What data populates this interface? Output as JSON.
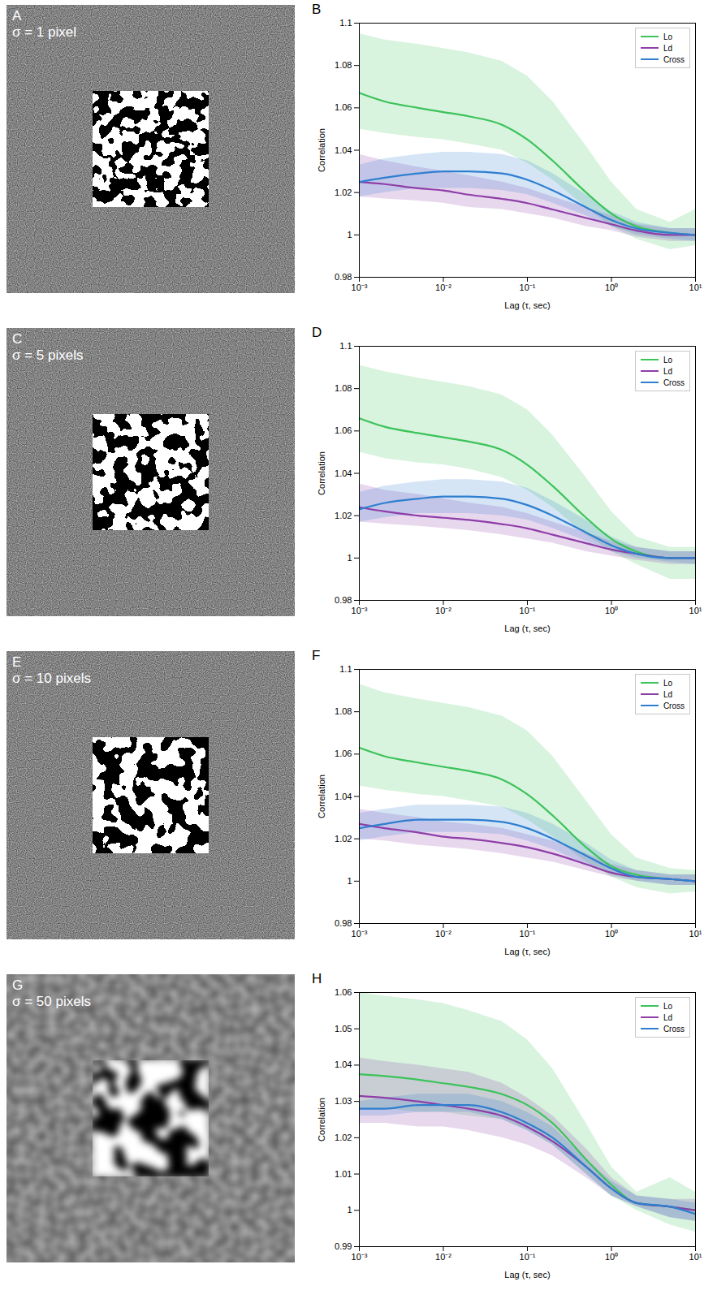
{
  "images": [
    {
      "panel": "A",
      "text": "σ = 1 pixel"
    },
    {
      "panel": "C",
      "text": "σ = 5 pixels"
    },
    {
      "panel": "E",
      "text": "σ = 10 pixels"
    },
    {
      "panel": "G",
      "text": "σ = 50 pixels"
    }
  ],
  "chart_data": [
    {
      "type": "line",
      "panel": "B",
      "x_label": "Lag (τ, sec)",
      "y_label": "Correlation",
      "log": "x",
      "legend": "northeast",
      "xlim": [
        0.001,
        10
      ],
      "xticks": [
        {
          "value": 0.001,
          "label": "10⁻³"
        },
        {
          "value": 0.01,
          "label": "10⁻²"
        },
        {
          "value": 0.1,
          "label": "10⁻¹"
        },
        {
          "value": 1,
          "label": "10⁰"
        },
        {
          "value": 10,
          "label": "10¹"
        }
      ],
      "ylim": [
        0.98,
        1.1
      ],
      "yticks": [
        0.98,
        1,
        1.02,
        1.04,
        1.06,
        1.08,
        1.1
      ],
      "x": [
        0.001,
        0.002,
        0.005,
        0.01,
        0.02,
        0.05,
        0.1,
        0.2,
        0.5,
        1,
        2,
        5,
        10
      ],
      "series": [
        {
          "name": "Lo",
          "color": "#3cc35a",
          "values": [
            1.067,
            1.063,
            1.06,
            1.058,
            1.056,
            1.052,
            1.045,
            1.035,
            1.02,
            1.01,
            1.004,
            1.001,
            1.0
          ],
          "lower": [
            1.05,
            1.048,
            1.046,
            1.045,
            1.043,
            1.04,
            1.034,
            1.026,
            1.013,
            1.004,
            0.998,
            0.993,
            0.995
          ],
          "upper": [
            1.095,
            1.092,
            1.09,
            1.088,
            1.086,
            1.082,
            1.075,
            1.063,
            1.042,
            1.025,
            1.012,
            1.006,
            1.012
          ]
        },
        {
          "name": "Ld",
          "color": "#8e3ea8",
          "values": [
            1.025,
            1.024,
            1.022,
            1.021,
            1.019,
            1.017,
            1.015,
            1.012,
            1.008,
            1.005,
            1.002,
            1.0,
            1.0
          ],
          "lower": [
            1.018,
            1.017,
            1.016,
            1.015,
            1.013,
            1.012,
            1.01,
            1.008,
            1.004,
            1.002,
            0.999,
            0.997,
            0.997
          ],
          "upper": [
            1.038,
            1.035,
            1.032,
            1.03,
            1.028,
            1.025,
            1.022,
            1.018,
            1.013,
            1.009,
            1.005,
            1.003,
            1.003
          ]
        },
        {
          "name": "Cross",
          "color": "#2f7fd0",
          "values": [
            1.025,
            1.027,
            1.029,
            1.03,
            1.03,
            1.029,
            1.026,
            1.021,
            1.013,
            1.007,
            1.003,
            1.001,
            1.0
          ],
          "lower": [
            1.018,
            1.02,
            1.022,
            1.022,
            1.022,
            1.021,
            1.019,
            1.015,
            1.009,
            1.004,
            1.0,
            0.998,
            0.997
          ],
          "upper": [
            1.033,
            1.036,
            1.038,
            1.039,
            1.039,
            1.038,
            1.035,
            1.029,
            1.019,
            1.011,
            1.006,
            1.003,
            1.003
          ]
        }
      ]
    },
    {
      "type": "line",
      "panel": "D",
      "x_label": "Lag (τ, sec)",
      "y_label": "Correlation",
      "log": "x",
      "legend": "northeast",
      "xlim": [
        0.001,
        10
      ],
      "xticks": [
        {
          "value": 0.001,
          "label": "10⁻³"
        },
        {
          "value": 0.01,
          "label": "10⁻²"
        },
        {
          "value": 0.1,
          "label": "10⁻¹"
        },
        {
          "value": 1,
          "label": "10⁰"
        },
        {
          "value": 10,
          "label": "10¹"
        }
      ],
      "ylim": [
        0.98,
        1.1
      ],
      "yticks": [
        0.98,
        1,
        1.02,
        1.04,
        1.06,
        1.08,
        1.1
      ],
      "x": [
        0.001,
        0.002,
        0.005,
        0.01,
        0.02,
        0.05,
        0.1,
        0.2,
        0.5,
        1,
        2,
        5,
        10
      ],
      "series": [
        {
          "name": "Lo",
          "color": "#3cc35a",
          "values": [
            1.066,
            1.062,
            1.059,
            1.057,
            1.055,
            1.051,
            1.044,
            1.034,
            1.019,
            1.009,
            1.003,
            1.0,
            1.0
          ],
          "lower": [
            1.05,
            1.047,
            1.045,
            1.044,
            1.042,
            1.038,
            1.032,
            1.024,
            1.011,
            1.003,
            0.997,
            0.99,
            0.99
          ],
          "upper": [
            1.091,
            1.088,
            1.085,
            1.083,
            1.081,
            1.077,
            1.07,
            1.058,
            1.038,
            1.022,
            1.01,
            1.005,
            1.005
          ]
        },
        {
          "name": "Ld",
          "color": "#8e3ea8",
          "values": [
            1.024,
            1.022,
            1.02,
            1.019,
            1.018,
            1.016,
            1.014,
            1.011,
            1.007,
            1.004,
            1.002,
            1.0,
            1.0
          ],
          "lower": [
            1.017,
            1.016,
            1.015,
            1.014,
            1.013,
            1.011,
            1.009,
            1.007,
            1.003,
            1.001,
            0.999,
            0.997,
            0.997
          ],
          "upper": [
            1.035,
            1.032,
            1.03,
            1.028,
            1.026,
            1.024,
            1.021,
            1.017,
            1.012,
            1.008,
            1.005,
            1.003,
            1.003
          ]
        },
        {
          "name": "Cross",
          "color": "#2f7fd0",
          "values": [
            1.023,
            1.026,
            1.028,
            1.029,
            1.029,
            1.028,
            1.025,
            1.02,
            1.012,
            1.006,
            1.002,
            1.0,
            1.0
          ],
          "lower": [
            1.017,
            1.019,
            1.021,
            1.021,
            1.021,
            1.02,
            1.018,
            1.014,
            1.008,
            1.003,
            1.0,
            0.998,
            0.997
          ],
          "upper": [
            1.031,
            1.034,
            1.036,
            1.037,
            1.037,
            1.036,
            1.033,
            1.027,
            1.018,
            1.01,
            1.005,
            1.003,
            1.003
          ]
        }
      ]
    },
    {
      "type": "line",
      "panel": "F",
      "x_label": "Lag (τ, sec)",
      "y_label": "Correlation",
      "log": "x",
      "legend": "northeast",
      "xlim": [
        0.001,
        10
      ],
      "xticks": [
        {
          "value": 0.001,
          "label": "10⁻³"
        },
        {
          "value": 0.01,
          "label": "10⁻²"
        },
        {
          "value": 0.1,
          "label": "10⁻¹"
        },
        {
          "value": 1,
          "label": "10⁰"
        },
        {
          "value": 10,
          "label": "10¹"
        }
      ],
      "ylim": [
        0.98,
        1.1
      ],
      "yticks": [
        0.98,
        1,
        1.02,
        1.04,
        1.06,
        1.08,
        1.1
      ],
      "x": [
        0.001,
        0.002,
        0.005,
        0.01,
        0.02,
        0.05,
        0.1,
        0.2,
        0.5,
        1,
        2,
        5,
        10
      ],
      "series": [
        {
          "name": "Lo",
          "color": "#3cc35a",
          "values": [
            1.063,
            1.059,
            1.056,
            1.054,
            1.052,
            1.048,
            1.041,
            1.031,
            1.016,
            1.007,
            1.003,
            1.001,
            1.0
          ],
          "lower": [
            1.045,
            1.043,
            1.041,
            1.04,
            1.038,
            1.035,
            1.029,
            1.021,
            1.009,
            1.002,
            0.997,
            0.994,
            0.995
          ],
          "upper": [
            1.093,
            1.089,
            1.086,
            1.084,
            1.082,
            1.078,
            1.071,
            1.059,
            1.038,
            1.022,
            1.011,
            1.006,
            1.005
          ]
        },
        {
          "name": "Ld",
          "color": "#8e3ea8",
          "values": [
            1.027,
            1.025,
            1.023,
            1.021,
            1.02,
            1.018,
            1.016,
            1.013,
            1.008,
            1.004,
            1.002,
            1.001,
            1.0
          ],
          "lower": [
            1.02,
            1.019,
            1.017,
            1.016,
            1.015,
            1.013,
            1.011,
            1.009,
            1.005,
            1.002,
            1.0,
            0.998,
            0.998
          ],
          "upper": [
            1.034,
            1.032,
            1.03,
            1.028,
            1.027,
            1.025,
            1.022,
            1.019,
            1.013,
            1.008,
            1.005,
            1.003,
            1.003
          ]
        },
        {
          "name": "Cross",
          "color": "#2f7fd0",
          "values": [
            1.025,
            1.027,
            1.029,
            1.029,
            1.029,
            1.028,
            1.025,
            1.02,
            1.012,
            1.006,
            1.002,
            1.001,
            1.0
          ],
          "lower": [
            1.019,
            1.021,
            1.023,
            1.023,
            1.023,
            1.022,
            1.019,
            1.015,
            1.008,
            1.003,
            1.0,
            0.998,
            0.998
          ],
          "upper": [
            1.032,
            1.034,
            1.036,
            1.036,
            1.036,
            1.035,
            1.032,
            1.027,
            1.018,
            1.01,
            1.005,
            1.003,
            1.003
          ]
        }
      ]
    },
    {
      "type": "line",
      "panel": "H",
      "x_label": "Lag (τ, sec)",
      "y_label": "Correlation",
      "log": "x",
      "legend": "northeast",
      "xlim": [
        0.001,
        10
      ],
      "xticks": [
        {
          "value": 0.001,
          "label": "10⁻³"
        },
        {
          "value": 0.01,
          "label": "10⁻²"
        },
        {
          "value": 0.1,
          "label": "10⁻¹"
        },
        {
          "value": 1,
          "label": "10⁰"
        },
        {
          "value": 10,
          "label": "10¹"
        }
      ],
      "ylim": [
        0.99,
        1.06
      ],
      "yticks": [
        0.99,
        1,
        1.01,
        1.02,
        1.03,
        1.04,
        1.05,
        1.06
      ],
      "x": [
        0.001,
        0.002,
        0.005,
        0.01,
        0.02,
        0.05,
        0.1,
        0.2,
        0.5,
        1,
        2,
        5,
        10
      ],
      "series": [
        {
          "name": "Lo",
          "color": "#3cc35a",
          "values": [
            1.0375,
            1.037,
            1.036,
            1.035,
            1.034,
            1.032,
            1.029,
            1.024,
            1.014,
            1.007,
            1.002,
            1.001,
            1.0
          ],
          "lower": [
            1.028,
            1.028,
            1.027,
            1.027,
            1.026,
            1.025,
            1.022,
            1.018,
            1.01,
            1.004,
            1.0,
            0.996,
            0.994
          ],
          "upper": [
            1.06,
            1.059,
            1.058,
            1.057,
            1.055,
            1.052,
            1.047,
            1.039,
            1.024,
            1.012,
            1.005,
            1.009,
            1.005
          ]
        },
        {
          "name": "Ld",
          "color": "#8e3ea8",
          "values": [
            1.0315,
            1.031,
            1.03,
            1.029,
            1.028,
            1.026,
            1.023,
            1.019,
            1.012,
            1.006,
            1.002,
            1.001,
            1.0
          ],
          "lower": [
            1.024,
            1.024,
            1.023,
            1.023,
            1.022,
            1.02,
            1.018,
            1.015,
            1.009,
            1.004,
            1.001,
            0.998,
            0.997
          ],
          "upper": [
            1.042,
            1.041,
            1.04,
            1.039,
            1.038,
            1.035,
            1.031,
            1.026,
            1.017,
            1.009,
            1.004,
            1.003,
            1.003
          ]
        },
        {
          "name": "Cross",
          "color": "#2f7fd0",
          "values": [
            1.028,
            1.028,
            1.029,
            1.029,
            1.029,
            1.027,
            1.024,
            1.02,
            1.012,
            1.006,
            1.002,
            1.001,
            0.999
          ],
          "lower": [
            1.026,
            1.026,
            1.027,
            1.027,
            1.027,
            1.025,
            1.022,
            1.018,
            1.01,
            1.004,
            1.001,
            0.998,
            0.997
          ],
          "upper": [
            1.03,
            1.031,
            1.032,
            1.032,
            1.032,
            1.03,
            1.027,
            1.023,
            1.014,
            1.008,
            1.004,
            1.003,
            1.002
          ]
        }
      ]
    }
  ]
}
